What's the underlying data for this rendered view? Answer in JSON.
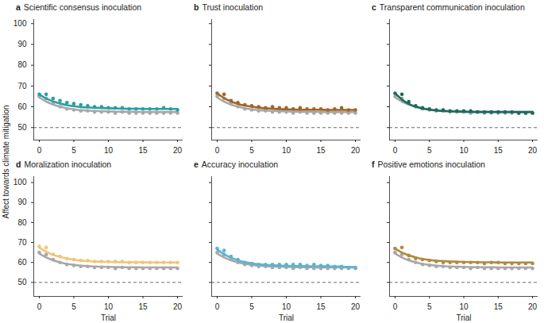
{
  "chart_data": [
    {
      "type": "line",
      "label": "a",
      "title": "Scientific consensus inoculation",
      "ylabel": "Affect towards climate mitigation",
      "x": [
        0,
        1,
        2,
        3,
        4,
        5,
        6,
        7,
        8,
        9,
        10,
        11,
        12,
        13,
        14,
        15,
        16,
        17,
        18,
        19,
        20
      ],
      "xlim": [
        -0.8,
        20.8
      ],
      "xticks": [
        0,
        5,
        10,
        15,
        20
      ],
      "ylim": [
        44,
        102
      ],
      "yticks": [
        50,
        60,
        70,
        80,
        90,
        100
      ],
      "reference": {
        "y": 50,
        "line_style": "dashed"
      },
      "series": [
        {
          "color": "#a8a8a8",
          "marker": "circle",
          "values": [
            65,
            64,
            61.5,
            60,
            59,
            58.5,
            58,
            58,
            57.5,
            57.5,
            57.5,
            57,
            57.5,
            57,
            57,
            57,
            57,
            57,
            57,
            57,
            57
          ],
          "fit": [
            64.5,
            62.5,
            61.1,
            60.1,
            59.3,
            58.8,
            58.4,
            58.2,
            58,
            57.9,
            57.8,
            57.7,
            57.6,
            57.6,
            57.6,
            57.5,
            57.5,
            57.5,
            57.5,
            57.5,
            57.5
          ]
        },
        {
          "color": "#2a9fa3",
          "marker": "circle",
          "values": [
            66,
            66,
            64,
            63,
            62,
            61.5,
            61,
            60.5,
            60,
            60,
            59.5,
            59.5,
            59.5,
            59,
            59,
            59,
            59,
            59,
            59.5,
            59,
            58.5
          ],
          "fit": [
            66,
            64,
            62.6,
            61.6,
            60.8,
            60.3,
            59.9,
            59.7,
            59.5,
            59.4,
            59.3,
            59.2,
            59.1,
            59.1,
            59.1,
            59,
            59,
            59,
            59,
            59,
            59
          ]
        }
      ]
    },
    {
      "type": "line",
      "label": "b",
      "title": "Trust inoculation",
      "tick_labels": "x",
      "x": [
        0,
        1,
        2,
        3,
        4,
        5,
        6,
        7,
        8,
        9,
        10,
        11,
        12,
        13,
        14,
        15,
        16,
        17,
        18,
        19,
        20
      ],
      "xlim": [
        -0.8,
        20.8
      ],
      "xticks": [
        0,
        5,
        10,
        15,
        20
      ],
      "ylim": [
        44,
        102
      ],
      "yticks": [
        50,
        60,
        70,
        80,
        90,
        100
      ],
      "reference": {
        "y": 50,
        "line_style": "dashed"
      },
      "series": [
        {
          "color": "#a8a8a8",
          "marker": "circle",
          "values": [
            65,
            64,
            61.5,
            60,
            59,
            58.5,
            58,
            58,
            57.5,
            57.5,
            57.5,
            57,
            57.5,
            57,
            57,
            57,
            57,
            57,
            57,
            57,
            57
          ],
          "fit": [
            64.5,
            62.5,
            61.1,
            60.1,
            59.3,
            58.8,
            58.4,
            58.2,
            58,
            57.9,
            57.8,
            57.7,
            57.6,
            57.6,
            57.6,
            57.5,
            57.5,
            57.5,
            57.5,
            57.5,
            57.5
          ]
        },
        {
          "color": "#a0652a",
          "marker": "circle",
          "values": [
            66.5,
            66,
            63,
            62,
            61,
            60.5,
            60,
            59.5,
            60,
            59.5,
            59.5,
            59,
            59.5,
            59,
            59,
            59,
            58.5,
            59,
            59.5,
            58.5,
            58.5
          ],
          "fit": [
            66.5,
            64.2,
            62.6,
            61.4,
            60.6,
            60,
            59.6,
            59.3,
            59.1,
            58.9,
            58.8,
            58.7,
            58.6,
            58.6,
            58.6,
            58.6,
            58.5,
            58.5,
            58.5,
            58.5,
            58.5
          ]
        }
      ]
    },
    {
      "type": "line",
      "label": "c",
      "title": "Transparent communication inoculation",
      "tick_labels": "x",
      "x": [
        0,
        1,
        2,
        3,
        4,
        5,
        6,
        7,
        8,
        9,
        10,
        11,
        12,
        13,
        14,
        15,
        16,
        17,
        18,
        19,
        20
      ],
      "xlim": [
        -0.8,
        20.8
      ],
      "xticks": [
        0,
        5,
        10,
        15,
        20
      ],
      "ylim": [
        44,
        102
      ],
      "yticks": [
        50,
        60,
        70,
        80,
        90,
        100
      ],
      "reference": {
        "y": 50,
        "line_style": "dashed"
      },
      "series": [
        {
          "color": "#a8a8a8",
          "marker": "circle",
          "values": [
            65,
            64,
            61.5,
            60,
            59,
            58.5,
            58,
            58,
            57.5,
            57.5,
            57.5,
            57,
            57.5,
            57,
            57,
            57,
            57,
            57,
            57,
            57,
            57
          ],
          "fit": [
            64.5,
            62.5,
            61.1,
            60.1,
            59.3,
            58.8,
            58.4,
            58.2,
            58,
            57.9,
            57.8,
            57.7,
            57.6,
            57.6,
            57.6,
            57.5,
            57.5,
            57.5,
            57.5,
            57.5,
            57.5
          ]
        },
        {
          "color": "#1e6b5e",
          "marker": "circle",
          "values": [
            66.5,
            66,
            62.5,
            60.5,
            59.5,
            59,
            58.5,
            58.5,
            58,
            58,
            58,
            58,
            57.5,
            57.5,
            57.5,
            57.5,
            57.5,
            57.5,
            57,
            57,
            57
          ],
          "fit": [
            66.5,
            63.5,
            61.4,
            60,
            59.2,
            58.6,
            58.2,
            57.9,
            57.8,
            57.7,
            57.6,
            57.5,
            57.5,
            57.5,
            57.5,
            57.5,
            57.5,
            57.5,
            57.5,
            57.5,
            57.5
          ]
        }
      ]
    },
    {
      "type": "line",
      "label": "d",
      "title": "Moralization inoculation",
      "xlabel": "Trial",
      "x": [
        0,
        1,
        2,
        3,
        4,
        5,
        6,
        7,
        8,
        9,
        10,
        11,
        12,
        13,
        14,
        15,
        16,
        17,
        18,
        19,
        20
      ],
      "xlim": [
        -0.8,
        20.8
      ],
      "xticks": [
        0,
        5,
        10,
        15,
        20
      ],
      "ylim": [
        43,
        103
      ],
      "yticks": [
        50,
        60,
        70,
        80,
        90,
        100
      ],
      "reference": {
        "y": 50,
        "line_style": "dashed"
      },
      "series": [
        {
          "color": "#a8a8a8",
          "marker": "circle",
          "values": [
            65,
            64,
            61.5,
            60,
            59,
            58.5,
            58,
            58,
            57.5,
            57.5,
            57.5,
            57,
            57.5,
            57,
            57,
            57,
            57,
            57,
            57,
            57,
            57
          ],
          "fit": [
            64.5,
            62.5,
            61.1,
            60.1,
            59.3,
            58.8,
            58.4,
            58.2,
            58,
            57.9,
            57.8,
            57.7,
            57.6,
            57.6,
            57.6,
            57.5,
            57.5,
            57.5,
            57.5,
            57.5,
            57.5
          ]
        },
        {
          "color": "#f2c37a",
          "marker": "circle",
          "values": [
            68,
            67.5,
            64,
            63,
            62,
            61.5,
            61,
            61,
            60.5,
            60.5,
            60.5,
            60.5,
            60.5,
            60,
            60,
            60,
            60,
            60,
            60,
            60,
            60
          ],
          "fit": [
            67.5,
            65.4,
            63.8,
            62.8,
            62,
            61.4,
            61,
            60.7,
            60.5,
            60.4,
            60.3,
            60.2,
            60.1,
            60.1,
            60.1,
            60.1,
            60,
            60,
            60,
            60,
            60
          ]
        }
      ]
    },
    {
      "type": "line",
      "label": "e",
      "title": "Accuracy inoculation",
      "xlabel": "Trial",
      "tick_labels": "x",
      "x": [
        0,
        1,
        2,
        3,
        4,
        5,
        6,
        7,
        8,
        9,
        10,
        11,
        12,
        13,
        14,
        15,
        16,
        17,
        18,
        19,
        20
      ],
      "xlim": [
        -0.8,
        20.8
      ],
      "xticks": [
        0,
        5,
        10,
        15,
        20
      ],
      "ylim": [
        43,
        103
      ],
      "yticks": [
        50,
        60,
        70,
        80,
        90,
        100
      ],
      "reference": {
        "y": 50,
        "line_style": "dashed"
      },
      "series": [
        {
          "color": "#a8a8a8",
          "marker": "circle",
          "values": [
            65,
            64,
            61.5,
            60,
            59,
            58.5,
            58,
            58,
            57.5,
            57.5,
            57.5,
            57,
            57.5,
            57,
            57,
            57,
            57,
            57,
            57,
            57,
            57
          ],
          "fit": [
            64.5,
            62.5,
            61.1,
            60.1,
            59.3,
            58.8,
            58.4,
            58.2,
            58,
            57.9,
            57.8,
            57.7,
            57.6,
            57.6,
            57.6,
            57.5,
            57.5,
            57.5,
            57.5,
            57.5,
            57.5
          ]
        },
        {
          "color": "#5ab4d0",
          "marker": "circle",
          "values": [
            67,
            66,
            63,
            61.5,
            60,
            59.5,
            59,
            59,
            59,
            59,
            59,
            59,
            59,
            58.5,
            59,
            58.5,
            58.5,
            58,
            58,
            57.5,
            57.5
          ],
          "fit": [
            66.5,
            64.1,
            62.4,
            61.1,
            60.2,
            59.6,
            59.1,
            58.8,
            58.6,
            58.4,
            58.3,
            58.2,
            58.2,
            58.1,
            58.1,
            58.1,
            58,
            58,
            57.9,
            57.8,
            57.7
          ]
        }
      ]
    },
    {
      "type": "line",
      "label": "f",
      "title": "Positive emotions inoculation",
      "xlabel": "Trial",
      "tick_labels": "x",
      "x": [
        0,
        1,
        2,
        3,
        4,
        5,
        6,
        7,
        8,
        9,
        10,
        11,
        12,
        13,
        14,
        15,
        16,
        17,
        18,
        19,
        20
      ],
      "xlim": [
        -0.8,
        20.8
      ],
      "xticks": [
        0,
        5,
        10,
        15,
        20
      ],
      "ylim": [
        43,
        103
      ],
      "yticks": [
        50,
        60,
        70,
        80,
        90,
        100
      ],
      "reference": {
        "y": 50,
        "line_style": "dashed"
      },
      "series": [
        {
          "color": "#a8a8a8",
          "marker": "circle",
          "values": [
            65,
            64,
            61.5,
            60,
            59,
            58.5,
            58,
            58,
            57.5,
            57.5,
            57.5,
            57,
            57.5,
            57,
            57,
            57,
            57,
            57,
            57,
            57,
            57
          ],
          "fit": [
            64.5,
            62.5,
            61.1,
            60.1,
            59.3,
            58.8,
            58.4,
            58.2,
            58,
            57.9,
            57.8,
            57.7,
            57.6,
            57.6,
            57.6,
            57.5,
            57.5,
            57.5,
            57.5,
            57.5,
            57.5
          ]
        },
        {
          "color": "#b08a3e",
          "marker": "circle",
          "values": [
            67,
            67.5,
            63.5,
            62,
            61.5,
            61,
            60.5,
            60,
            60,
            60,
            60,
            60,
            60,
            59.5,
            60,
            60,
            59.5,
            59.5,
            59.5,
            59.5,
            59.5
          ],
          "fit": [
            67,
            65,
            63.6,
            62.6,
            61.8,
            61.3,
            60.9,
            60.7,
            60.5,
            60.4,
            60.3,
            60.2,
            60.1,
            60.1,
            60.1,
            60,
            60,
            60,
            60,
            60,
            60
          ]
        }
      ]
    }
  ]
}
